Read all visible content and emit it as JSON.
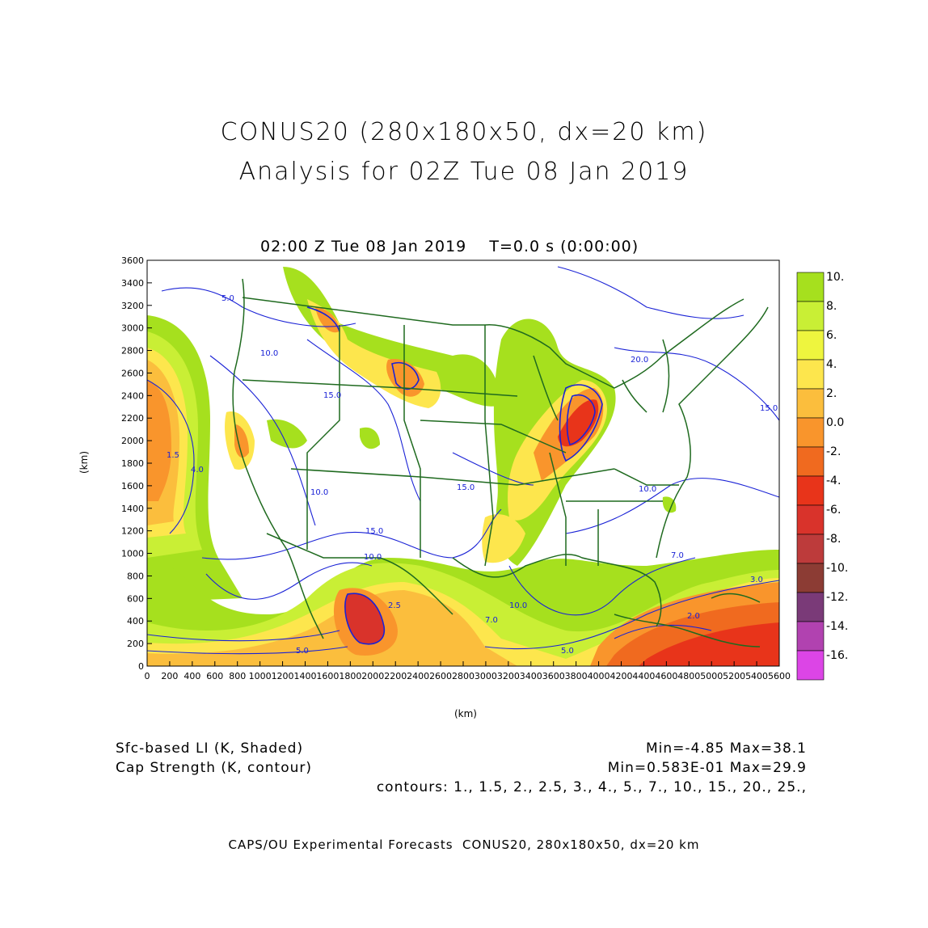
{
  "header": {
    "title_line1": "CONUS20 (280x180x50, dx=20 km)",
    "title_line2": "Analysis for 02Z Tue 08 Jan 2019",
    "subtitle": "02:00 Z Tue 08 Jan 2019    T=0.0 s (0:00:00)"
  },
  "axes": {
    "y_label": "(km)",
    "x_label": "(km)",
    "y_ticks": [
      "0",
      "200",
      "400",
      "600",
      "800",
      "1000",
      "1200",
      "1400",
      "1600",
      "1800",
      "2000",
      "2200",
      "2400",
      "2600",
      "2800",
      "3000",
      "3200",
      "3400",
      "3600"
    ],
    "x_ticks": [
      "0",
      "200",
      "400",
      "600",
      "800",
      "1000",
      "1200",
      "1400",
      "1600",
      "1800",
      "2000",
      "2200",
      "2400",
      "2600",
      "2800",
      "3000",
      "3200",
      "3400",
      "3600",
      "3800",
      "4000",
      "4200",
      "4400",
      "4600",
      "4800",
      "5000",
      "5200",
      "5400",
      "5600"
    ]
  },
  "colorbar": {
    "labels": [
      "10.",
      "8.",
      "6.",
      "4.",
      "2.",
      "0.0",
      "-2.",
      "-4.",
      "-6.",
      "-8.",
      "-10.",
      "-12.",
      "-14.",
      "-16."
    ],
    "colors": [
      "#a6e01e",
      "#c9ef35",
      "#eef53e",
      "#fde64d",
      "#fbbe3d",
      "#f9952c",
      "#f06a1f",
      "#e8341a",
      "#d9332b",
      "#bd3b3b",
      "#8c3c34",
      "#7a3a78",
      "#b142b0",
      "#dc45e6"
    ]
  },
  "contour_labels": [
    "5.0",
    "10.0",
    "15.0",
    "20.0",
    "7.0",
    "3.0",
    "4.0",
    "1.5",
    "2.5",
    "2.0"
  ],
  "footer": {
    "field1_name": "Sfc-based LI (K, Shaded)",
    "field1_range": "Min=-4.85 Max=38.1",
    "field2_name": "Cap Strength (K, contour)",
    "field2_range": "Min=0.583E-01 Max=29.9",
    "contours": "contours: 1., 1.5, 2., 2.5, 3., 4., 5., 7., 10., 15., 20., 25.,",
    "credit": "CAPS/OU Experimental Forecasts  CONUS20, 280x180x50, dx=20 km"
  }
}
